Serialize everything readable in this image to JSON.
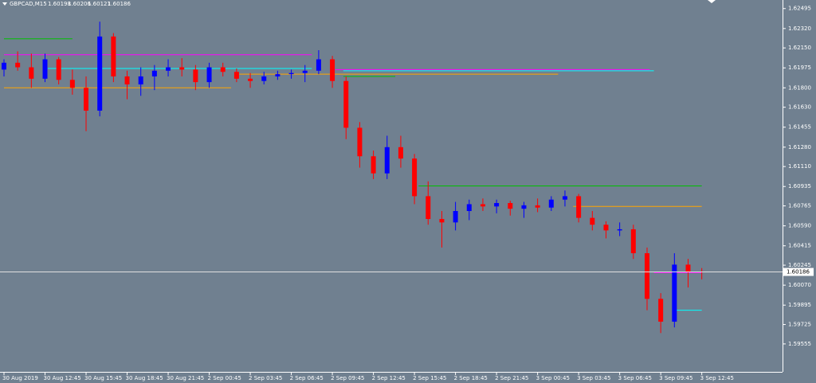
{
  "chart_data": {
    "type": "candlestick",
    "title": "GBPCAD,M15",
    "last_bar": [
      1.60198,
      1.60206,
      1.60121,
      1.60186
    ],
    "up_color": "#0000ff",
    "down_color": "#ff0000",
    "categories": [
      "30 Aug 2019",
      null,
      null,
      "30 Aug 12:45",
      null,
      null,
      "30 Aug 15:45",
      null,
      null,
      "30 Aug 18:45",
      null,
      null,
      "30 Aug 21:45",
      null,
      null,
      "2 Sep 00:45",
      null,
      null,
      "2 Sep 03:45",
      null,
      null,
      "2 Sep 06:45",
      null,
      null,
      "2 Sep 09:45",
      null,
      null,
      "2 Sep 12:45",
      null,
      null,
      "2 Sep 15:45",
      null,
      null,
      "2 Sep 18:45",
      null,
      null,
      "2 Sep 21:45",
      null,
      null,
      "3 Sep 00:45",
      null,
      null,
      "3 Sep 03:45",
      null,
      null,
      "3 Sep 06:45",
      null,
      null,
      "3 Sep 09:45",
      null,
      null,
      "3 Sep 12:45"
    ],
    "open": [
      1.6196,
      1.6202,
      1.6198,
      1.6188,
      1.6205,
      1.6187,
      1.618,
      1.616,
      1.6225,
      1.619,
      1.6183,
      1.619,
      1.6195,
      1.6198,
      1.6196,
      1.6185,
      1.6198,
      1.6194,
      1.6188,
      1.6186,
      1.619,
      1.6192,
      1.6193,
      1.6195,
      1.6205,
      1.6186,
      1.6145,
      1.612,
      1.6105,
      1.6128,
      1.6118,
      1.6085,
      1.6065,
      1.6062,
      1.6072,
      1.6078,
      1.6076,
      1.6079,
      1.6074,
      1.6077,
      1.6075,
      1.6082,
      1.6085,
      1.6066,
      1.606,
      1.6055,
      1.6056,
      1.6035,
      1.5995,
      1.5975,
      1.6025,
      1.6019
    ],
    "high": [
      1.6205,
      1.6212,
      1.621,
      1.621,
      1.6207,
      1.6196,
      1.619,
      1.6238,
      1.6228,
      1.6195,
      1.6198,
      1.62,
      1.6205,
      1.6206,
      1.62,
      1.6202,
      1.6202,
      1.6197,
      1.6193,
      1.6194,
      1.6195,
      1.6196,
      1.62,
      1.6213,
      1.6208,
      1.619,
      1.615,
      1.6125,
      1.6138,
      1.6138,
      1.6122,
      1.6098,
      1.6072,
      1.608,
      1.6082,
      1.6083,
      1.6082,
      1.6081,
      1.608,
      1.6083,
      1.6085,
      1.609,
      1.6087,
      1.6072,
      1.6063,
      1.6062,
      1.606,
      1.604,
      1.6,
      1.6035,
      1.603,
      1.6022
    ],
    "low": [
      1.619,
      1.6195,
      1.618,
      1.6185,
      1.6183,
      1.6174,
      1.6142,
      1.6155,
      1.6185,
      1.617,
      1.6173,
      1.6178,
      1.619,
      1.619,
      1.6178,
      1.618,
      1.619,
      1.6185,
      1.618,
      1.6183,
      1.6187,
      1.6188,
      1.6185,
      1.6192,
      1.618,
      1.6135,
      1.611,
      1.61,
      1.61,
      1.611,
      1.6078,
      1.606,
      1.604,
      1.6055,
      1.6064,
      1.6072,
      1.607,
      1.6068,
      1.6066,
      1.6071,
      1.6072,
      1.6076,
      1.6062,
      1.6055,
      1.6048,
      1.605,
      1.603,
      1.5985,
      1.5965,
      1.597,
      1.6005,
      1.60121
    ],
    "close": [
      1.6202,
      1.6198,
      1.6188,
      1.6205,
      1.6187,
      1.618,
      1.616,
      1.6225,
      1.619,
      1.6183,
      1.619,
      1.6195,
      1.6198,
      1.6196,
      1.6185,
      1.6198,
      1.6194,
      1.6188,
      1.6186,
      1.619,
      1.6192,
      1.6193,
      1.6195,
      1.6205,
      1.6186,
      1.6145,
      1.612,
      1.6105,
      1.6128,
      1.6118,
      1.6085,
      1.6065,
      1.6062,
      1.6072,
      1.6078,
      1.6076,
      1.6079,
      1.6074,
      1.6077,
      1.6075,
      1.6082,
      1.6085,
      1.6066,
      1.606,
      1.6055,
      1.6056,
      1.6035,
      1.5995,
      1.5975,
      1.6025,
      1.6019,
      1.60186
    ],
    "levels": [
      {
        "value": 1.6223,
        "color": "#00c000",
        "from": 0,
        "to": 5
      },
      {
        "value": 1.6209,
        "color": "#ff00ff",
        "from": 0,
        "to": 22.5
      },
      {
        "value": 1.6197,
        "color": "#00ffff",
        "from": 3.2,
        "to": 22.5
      },
      {
        "value": 1.618,
        "color": "#ffa500",
        "from": 0,
        "to": 16.6
      },
      {
        "value": 1.6196,
        "color": "#ff00ff",
        "from": 24.2,
        "to": 47.2
      },
      {
        "value": 1.6195,
        "color": "#00ffff",
        "from": 24.8,
        "to": 47.5
      },
      {
        "value": 1.6192,
        "color": "#ffa500",
        "from": 17.2,
        "to": 40.5
      },
      {
        "value": 1.619,
        "color": "#00c000",
        "from": 24.8,
        "to": 28.6
      },
      {
        "value": 1.6094,
        "color": "#00c000",
        "from": 30.3,
        "to": 51
      },
      {
        "value": 1.6076,
        "color": "#ffa500",
        "from": 41.6,
        "to": 51
      },
      {
        "value": 1.6018,
        "color": "#ff00ff",
        "from": 47.5,
        "to": 51
      },
      {
        "value": 1.5985,
        "color": "#00ffff",
        "from": 49,
        "to": 51
      }
    ],
    "ylim": [
      1.5931,
      1.6257
    ],
    "yticks": [
      1.62495,
      {
        "value": 1.6232,
        "label": "1.62320"
      },
      {
        "value": 1.6215,
        "label": "1.62150"
      },
      1.61975,
      {
        "value": 1.618,
        "label": "1.61800"
      },
      {
        "value": 1.6163,
        "label": "1.61630"
      },
      1.61455,
      {
        "value": 1.6128,
        "label": "1.61280"
      },
      {
        "value": 1.6111,
        "label": "1.61110"
      },
      1.60935,
      1.60765,
      {
        "value": 1.6059,
        "label": "1.60590"
      },
      1.60415,
      1.60245,
      {
        "value": 1.6007,
        "label": "1.60070"
      },
      1.59895,
      1.59725,
      1.59555
    ]
  }
}
